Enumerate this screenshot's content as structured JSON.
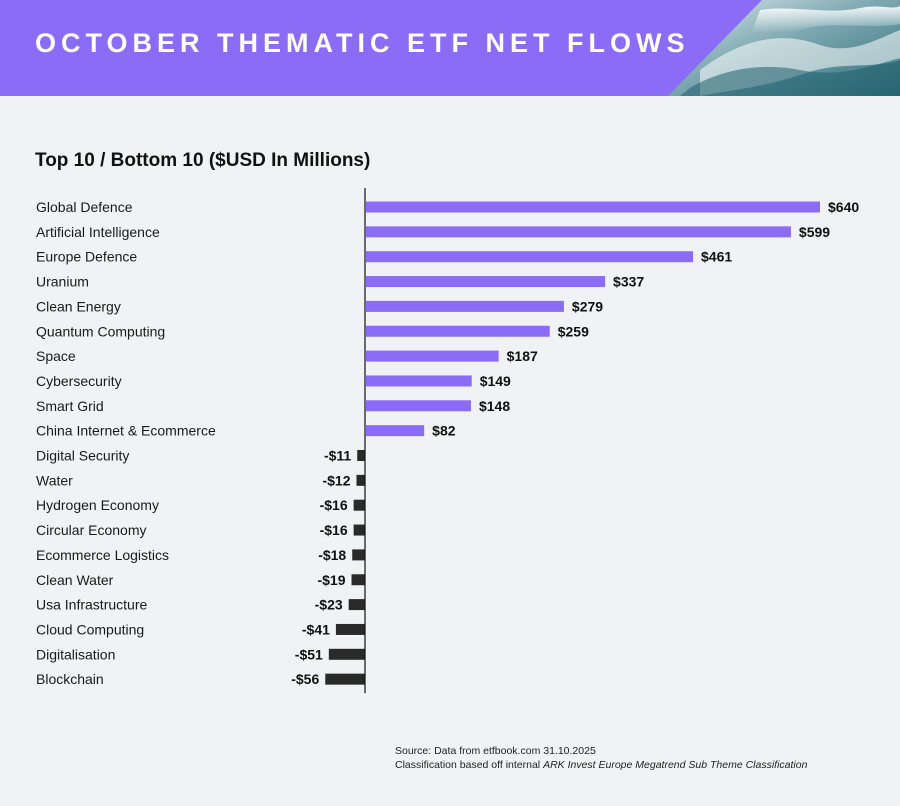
{
  "header": {
    "title": "OCTOBER THEMATIC ETF NET FLOWS",
    "accent_color": "#8b6cf6"
  },
  "subtitle": "Top 10 / Bottom 10 ($USD In Millions)",
  "source": {
    "line1": "Source: Data from etfbook.com 31.10.2025",
    "line2_prefix": "Classification based off internal ",
    "line2_italic": "ARK Invest Europe Megatrend Sub Theme Classification"
  },
  "chart_data": {
    "type": "bar",
    "orientation": "horizontal",
    "title": "Top 10 / Bottom 10 ($USD In Millions)",
    "xlabel": "",
    "ylabel": "",
    "xlim": [
      -56,
      640
    ],
    "positive_color": "#8b6cf6",
    "negative_color": "#2a2a2a",
    "categories": [
      "Global Defence",
      "Artificial Intelligence",
      "Europe Defence",
      "Uranium",
      "Clean Energy",
      "Quantum Computing",
      "Space",
      "Cybersecurity",
      "Smart Grid",
      "China Internet & Ecommerce",
      "Digital Security",
      "Water",
      "Hydrogen Economy",
      "Circular Economy",
      "Ecommerce Logistics",
      "Clean Water",
      "Usa Infrastructure",
      "Cloud Computing",
      "Digitalisation",
      "Blockchain"
    ],
    "values": [
      640,
      599,
      461,
      337,
      279,
      259,
      187,
      149,
      148,
      82,
      -11,
      -12,
      -16,
      -16,
      -18,
      -19,
      -23,
      -41,
      -51,
      -56
    ],
    "value_labels": [
      "$640",
      "$599",
      "$461",
      "$337",
      "$279",
      "$259",
      "$187",
      "$149",
      "$148",
      "$82",
      "-$11",
      "-$12",
      "-$16",
      "-$16",
      "-$18",
      "-$19",
      "-$23",
      "-$41",
      "-$51",
      "-$56"
    ]
  }
}
